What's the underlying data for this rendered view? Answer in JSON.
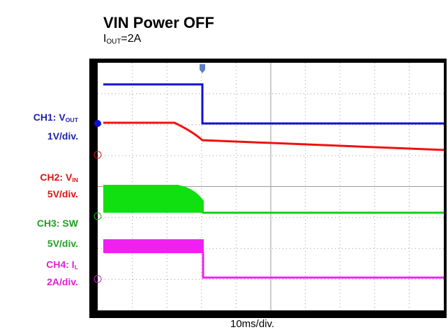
{
  "title": "VIN Power OFF",
  "subtitle": {
    "main": "I",
    "sub": "OUT",
    "rest": "=2A"
  },
  "channels": [
    {
      "name": {
        "main": "CH1: V",
        "sub": "OUT"
      },
      "scale": "1V/div."
    },
    {
      "name": {
        "main": "CH2: V",
        "sub": "IN"
      },
      "scale": "5V/div."
    },
    {
      "name": {
        "main": "CH3: SW"
      },
      "scale": "5V/div."
    },
    {
      "name": {
        "main": "CH4: I",
        "sub": "L"
      },
      "scale": "2A/div."
    }
  ],
  "x_label": "10ms/div."
}
